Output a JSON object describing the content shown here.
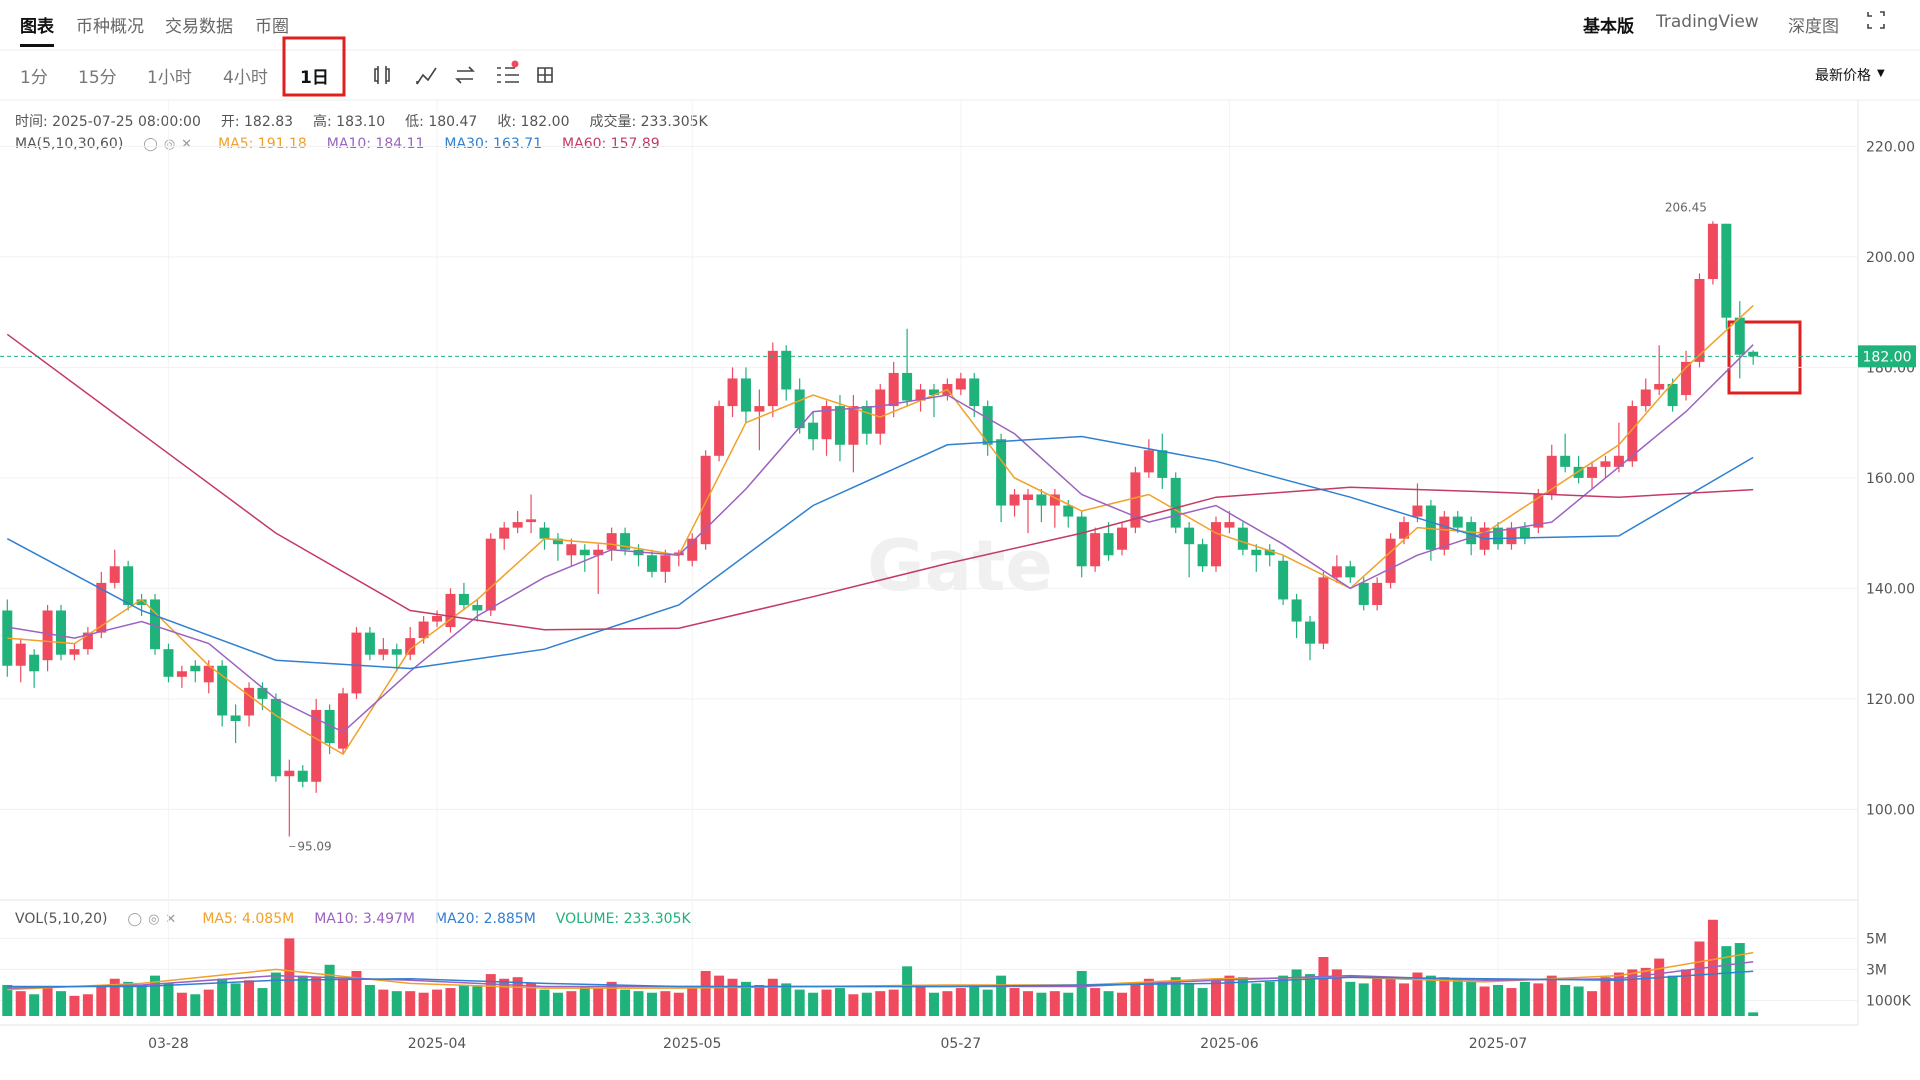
{
  "tabs": [
    "图表",
    "币种概况",
    "交易数据",
    "币圈"
  ],
  "right_tabs": [
    "基本版",
    "TradingView",
    "深度图"
  ],
  "intervals": [
    "1分",
    "15分",
    "1小时",
    "4小时",
    "1日"
  ],
  "price_source": "最新价格",
  "chart_data": {
    "type": "candlestick",
    "info": [
      "时间: 2025-07-25 08:00:00",
      "开: 182.83",
      "高: 183.10",
      "低: 180.47",
      "收: 182.00",
      "成交量: 233.305K"
    ],
    "ma_title": "MA(5,10,30,60)",
    "categories": [
      null,
      null,
      null,
      null,
      null,
      null,
      null,
      null,
      null,
      null,
      null,
      null,
      "03-28",
      null,
      null,
      null,
      null,
      null,
      null,
      null,
      null,
      null,
      null,
      null,
      null,
      null,
      null,
      null,
      null,
      null,
      null,
      null,
      "2025-04",
      null,
      null,
      null,
      null,
      null,
      null,
      null,
      null,
      null,
      null,
      null,
      null,
      null,
      null,
      null,
      null,
      null,
      null,
      "2025-05",
      null,
      null,
      null,
      null,
      null,
      null,
      null,
      null,
      null,
      null,
      null,
      null,
      null,
      null,
      null,
      null,
      null,
      null,
      null,
      "05-27",
      null,
      null,
      null,
      null,
      null,
      null,
      null,
      null,
      null,
      null,
      null,
      null,
      null,
      null,
      null,
      null,
      null,
      null,
      null,
      "2025-06",
      null,
      null,
      null,
      null,
      null,
      null,
      null,
      null,
      null,
      null,
      null,
      null,
      null,
      null,
      null,
      null,
      null,
      null,
      null,
      "2025-07",
      null,
      null,
      null,
      null,
      null,
      null,
      null,
      null,
      null,
      null,
      null,
      null,
      null,
      null,
      null,
      null,
      null,
      null,
      null
    ],
    "candles": [
      [
        136,
        138,
        124,
        126
      ],
      [
        126,
        131,
        123,
        130
      ],
      [
        128,
        129,
        122,
        125
      ],
      [
        127,
        137,
        125,
        136
      ],
      [
        136,
        137,
        127,
        128
      ],
      [
        128,
        130,
        127,
        129
      ],
      [
        129,
        133,
        128,
        132
      ],
      [
        132,
        143,
        131,
        141
      ],
      [
        141,
        147,
        140,
        144
      ],
      [
        144,
        145,
        136,
        137
      ],
      [
        138,
        139,
        135,
        137
      ],
      [
        138,
        139,
        128,
        129
      ],
      [
        129,
        130,
        123,
        124
      ],
      [
        124,
        126,
        122,
        125
      ],
      [
        126,
        127,
        123,
        125
      ],
      [
        123,
        127,
        121,
        126
      ],
      [
        126,
        127,
        115,
        117
      ],
      [
        117,
        119,
        112,
        116
      ],
      [
        117,
        123,
        115,
        122
      ],
      [
        122,
        123,
        118,
        120
      ],
      [
        120,
        121,
        105,
        106
      ],
      [
        106,
        109,
        95.09,
        107
      ],
      [
        107,
        108,
        104,
        105
      ],
      [
        105,
        120,
        103,
        118
      ],
      [
        118,
        119,
        110,
        112
      ],
      [
        111,
        122,
        110,
        121
      ],
      [
        121,
        133,
        120,
        132
      ],
      [
        132,
        133,
        127,
        128
      ],
      [
        128,
        131,
        127,
        129
      ],
      [
        129,
        130,
        125,
        128
      ],
      [
        128,
        133,
        127,
        131
      ],
      [
        131,
        135,
        130,
        134
      ],
      [
        134,
        136,
        133,
        135
      ],
      [
        133,
        140,
        132,
        139
      ],
      [
        139,
        141,
        136,
        137
      ],
      [
        137,
        138,
        134,
        136
      ],
      [
        136,
        150,
        135,
        149
      ],
      [
        149,
        152,
        147,
        151
      ],
      [
        151,
        154,
        150,
        152
      ],
      [
        152,
        157,
        150,
        152.5
      ],
      [
        151,
        152,
        147,
        149
      ],
      [
        149,
        150,
        145,
        148
      ],
      [
        146,
        149,
        144,
        148
      ],
      [
        147,
        148,
        143,
        146
      ],
      [
        146,
        148,
        139,
        147
      ],
      [
        147,
        151,
        145,
        150
      ],
      [
        150,
        151,
        146,
        147
      ],
      [
        147,
        148,
        144,
        146
      ],
      [
        146,
        147,
        142,
        143
      ],
      [
        143,
        147,
        141,
        146
      ],
      [
        146,
        147,
        144,
        146.5
      ],
      [
        145,
        150,
        144,
        149
      ],
      [
        148,
        165,
        147,
        164
      ],
      [
        164,
        174,
        163,
        173
      ],
      [
        173,
        180,
        171,
        178
      ],
      [
        178,
        180,
        170,
        172
      ],
      [
        172,
        176,
        165,
        173
      ],
      [
        173,
        184.5,
        171,
        183
      ],
      [
        183,
        184,
        174,
        176
      ],
      [
        176,
        178,
        168,
        169
      ],
      [
        170,
        172,
        165,
        167
      ],
      [
        167,
        174,
        164,
        173
      ],
      [
        173,
        175,
        163,
        166
      ],
      [
        166,
        175,
        161,
        173
      ],
      [
        173,
        174,
        166,
        168
      ],
      [
        168,
        177,
        166,
        176
      ],
      [
        173,
        181,
        171,
        179
      ],
      [
        179,
        187,
        173,
        174
      ],
      [
        174,
        177,
        172,
        176
      ],
      [
        176,
        177,
        171,
        175
      ],
      [
        175,
        178,
        174,
        177
      ],
      [
        176,
        179,
        175,
        178
      ],
      [
        178,
        179,
        171,
        173
      ],
      [
        173,
        174,
        164,
        166
      ],
      [
        167,
        168,
        152,
        155
      ],
      [
        155,
        158,
        153,
        157
      ],
      [
        156,
        158,
        150,
        157
      ],
      [
        157,
        158,
        152,
        155
      ],
      [
        155,
        158,
        151,
        157
      ],
      [
        155,
        156,
        151,
        153
      ],
      [
        153,
        154,
        142,
        144
      ],
      [
        144,
        151,
        143,
        150
      ],
      [
        150,
        152,
        145,
        146
      ],
      [
        147,
        152,
        146,
        151
      ],
      [
        151,
        162,
        150,
        161
      ],
      [
        161,
        167,
        160,
        165
      ],
      [
        165,
        168,
        158,
        160
      ],
      [
        160,
        161,
        150,
        151
      ],
      [
        151,
        152,
        142,
        148
      ],
      [
        148,
        149,
        143,
        144
      ],
      [
        144,
        153,
        143,
        152
      ],
      [
        151,
        154,
        150,
        152
      ],
      [
        151,
        152,
        146,
        147
      ],
      [
        147,
        148,
        143,
        146
      ],
      [
        147,
        148,
        144,
        146
      ],
      [
        145,
        146,
        137,
        138
      ],
      [
        138,
        139,
        131,
        134
      ],
      [
        134,
        135,
        127,
        130
      ],
      [
        130,
        143,
        129,
        142
      ],
      [
        142,
        146,
        141,
        144
      ],
      [
        144,
        145,
        141,
        142
      ],
      [
        141,
        142,
        136,
        137
      ],
      [
        137,
        142,
        136,
        141
      ],
      [
        141,
        150,
        140,
        149
      ],
      [
        149,
        153,
        148,
        152
      ],
      [
        153,
        159,
        152,
        155
      ],
      [
        155,
        156,
        145,
        147
      ],
      [
        147,
        154,
        146,
        153
      ],
      [
        153,
        154,
        150,
        151
      ],
      [
        152,
        153,
        146,
        148
      ],
      [
        147,
        152,
        146,
        151
      ],
      [
        151,
        152,
        147,
        148
      ],
      [
        148,
        152,
        147,
        151
      ],
      [
        151,
        152,
        148,
        149
      ],
      [
        151,
        158,
        150,
        157
      ],
      [
        157,
        166,
        156,
        164
      ],
      [
        164,
        168,
        161,
        162
      ],
      [
        162,
        164,
        159,
        160
      ],
      [
        160,
        163,
        158,
        162
      ],
      [
        162,
        164,
        160,
        163
      ],
      [
        162,
        170,
        161,
        164
      ],
      [
        163,
        174,
        162,
        173
      ],
      [
        173,
        178,
        172,
        176
      ],
      [
        176,
        184,
        175,
        177
      ],
      [
        177,
        178,
        172,
        173
      ],
      [
        175,
        183,
        174,
        181
      ],
      [
        181,
        197,
        180,
        196
      ],
      [
        196,
        206.45,
        195,
        206
      ],
      [
        206,
        206,
        187,
        189
      ],
      [
        189,
        192,
        178,
        182.3
      ],
      [
        182.83,
        183.1,
        180.47,
        182.0
      ]
    ],
    "up_color": "#ef4a5d",
    "down_color": "#1fb27b",
    "ylim": [
      83.6,
      228.4
    ],
    "yticks": [
      {
        "value": 100,
        "label": "100.00"
      },
      {
        "value": 120,
        "label": "120.00"
      },
      {
        "value": 140,
        "label": "140.00"
      },
      {
        "value": 160,
        "label": "160.00"
      },
      {
        "value": 180,
        "label": "180.00"
      },
      {
        "value": 200,
        "label": "200.00"
      },
      {
        "value": 220,
        "label": "220.00"
      }
    ],
    "grid": true,
    "last_price": {
      "value": 182,
      "label": "182.00"
    },
    "ma_series": [
      {
        "legend": "MA5: 191.18",
        "color": "#f0a128",
        "x": [
          0,
          5,
          10,
          15,
          20,
          25,
          30,
          35,
          40,
          45,
          50,
          55,
          60,
          65,
          70,
          75,
          80,
          85,
          90,
          95,
          100,
          105,
          110,
          115,
          120,
          125,
          130
        ],
        "values": [
          131,
          130,
          138,
          126,
          117,
          110,
          129,
          138,
          149,
          148,
          146,
          170,
          175,
          171,
          176,
          160,
          154,
          157,
          150,
          146,
          140,
          151,
          150,
          158,
          166,
          180,
          191.18
        ]
      },
      {
        "legend": "MA10: 184.11",
        "color": "#9b62c0",
        "x": [
          0,
          5,
          10,
          15,
          20,
          25,
          30,
          35,
          40,
          45,
          50,
          55,
          60,
          65,
          70,
          75,
          80,
          85,
          90,
          95,
          100,
          105,
          110,
          115,
          120,
          125,
          130
        ],
        "values": [
          133,
          131,
          134,
          130,
          120,
          114,
          125,
          135,
          142,
          147,
          146,
          158,
          172,
          173,
          175,
          168,
          157,
          152,
          155,
          148,
          140,
          146,
          150,
          152,
          162,
          172,
          184.11
        ]
      },
      {
        "legend": "MA30: 163.71",
        "color": "#2f80d1",
        "x": [
          0,
          10,
          20,
          30,
          40,
          50,
          60,
          70,
          80,
          90,
          100,
          110,
          120,
          130
        ],
        "values": [
          149,
          136,
          127,
          125.5,
          129,
          137,
          155,
          166,
          167.5,
          163,
          156.5,
          149,
          149.5,
          163.71
        ]
      },
      {
        "legend": "MA60: 157.89",
        "color": "#c43a62",
        "x": [
          0,
          10,
          20,
          30,
          40,
          50,
          60,
          70,
          80,
          90,
          100,
          110,
          120,
          130
        ],
        "values": [
          186,
          168,
          150,
          136,
          132.5,
          132.8,
          138.5,
          144.5,
          150,
          156.5,
          158.3,
          157.5,
          156.5,
          157.89
        ]
      }
    ],
    "volume": {
      "title": "VOL(5,10,20)",
      "values": [
        2000000,
        1600000,
        1400000,
        1800000,
        1600000,
        1300000,
        1400000,
        1900000,
        2400000,
        2200000,
        2000000,
        2600000,
        2100000,
        1500000,
        1400000,
        1700000,
        2400000,
        2100000,
        2300000,
        1800000,
        2800000,
        5000000,
        2600000,
        2500000,
        3300000,
        2400000,
        2900000,
        2000000,
        1700000,
        1600000,
        1600000,
        1500000,
        1700000,
        1800000,
        2000000,
        1900000,
        2700000,
        2400000,
        2500000,
        2100000,
        1700000,
        1500000,
        1600000,
        1900000,
        1800000,
        2200000,
        1700000,
        1600000,
        1500000,
        1600000,
        1500000,
        1800000,
        2900000,
        2600000,
        2400000,
        2200000,
        2000000,
        2400000,
        2100000,
        1700000,
        1500000,
        1700000,
        1800000,
        1400000,
        1500000,
        1600000,
        1700000,
        3200000,
        1900000,
        1500000,
        1600000,
        1800000,
        2000000,
        1700000,
        2600000,
        1800000,
        1600000,
        1500000,
        1600000,
        1500000,
        2900000,
        1800000,
        1600000,
        1500000,
        2100000,
        2400000,
        2200000,
        2500000,
        2100000,
        1800000,
        2400000,
        2600000,
        2500000,
        2100000,
        2200000,
        2600000,
        3000000,
        2700000,
        3800000,
        3000000,
        2200000,
        2100000,
        2500000,
        2400000,
        2100000,
        2800000,
        2600000,
        2500000,
        2400000,
        2200000,
        1900000,
        2000000,
        1800000,
        2200000,
        2100000,
        2600000,
        2000000,
        1900000,
        1600000,
        2500000,
        2800000,
        3000000,
        3100000,
        3700000,
        2600000,
        3000000,
        4800000,
        6200000,
        4500000,
        4700000,
        233305
      ],
      "ylim": [
        0,
        6700000
      ],
      "yticks": [
        {
          "value": 1000000,
          "label": "1000K"
        },
        {
          "value": 3000000,
          "label": "3M"
        },
        {
          "value": 5000000,
          "label": "5M"
        }
      ],
      "series": [
        {
          "legend": "MA5: 4.085M",
          "color": "#f0a128",
          "x": [
            0,
            10,
            20,
            30,
            40,
            50,
            60,
            70,
            80,
            90,
            100,
            110,
            120,
            130
          ],
          "values": [
            1700000,
            2100000,
            3000000,
            2100000,
            1800000,
            1800000,
            1900000,
            2000000,
            2000000,
            2400000,
            2500000,
            2200000,
            2600000,
            4085000
          ]
        },
        {
          "legend": "MA10: 3.497M",
          "color": "#9b62c0",
          "x": [
            0,
            10,
            20,
            30,
            40,
            50,
            60,
            70,
            80,
            90,
            100,
            110,
            120,
            130
          ],
          "values": [
            1800000,
            2000000,
            2600000,
            2300000,
            1900000,
            1900000,
            1900000,
            1900000,
            1900000,
            2300000,
            2600000,
            2300000,
            2400000,
            3497000
          ]
        },
        {
          "legend": "MA20: 2.885M",
          "color": "#2f80d1",
          "x": [
            0,
            10,
            20,
            30,
            40,
            50,
            60,
            70,
            80,
            90,
            100,
            110,
            120,
            130
          ],
          "values": [
            1900000,
            1900000,
            2300000,
            2400000,
            2100000,
            1900000,
            1900000,
            1900000,
            2000000,
            2100000,
            2500000,
            2400000,
            2300000,
            2885000
          ]
        }
      ],
      "legend": "VOLUME: 233.305K",
      "legend_color": "#1fb27b"
    },
    "watermark": "Gate"
  }
}
